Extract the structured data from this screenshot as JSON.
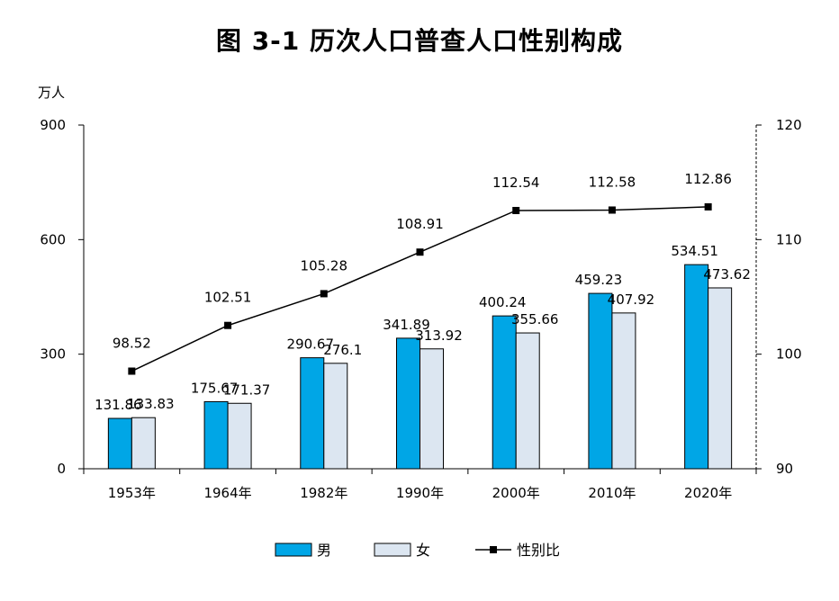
{
  "page": {
    "title": "图 3-1   历次人口普查人口性别构成"
  },
  "chart_data": {
    "type": "bar",
    "title": "图 3-1   历次人口普查人口性别构成",
    "ylabel": "万人",
    "ylim": [
      0,
      900
    ],
    "yticks": [
      0,
      300,
      600,
      900
    ],
    "y2lim": [
      90,
      120
    ],
    "y2ticks": [
      90,
      100,
      110,
      120
    ],
    "categories": [
      "1953年",
      "1964年",
      "1982年",
      "1990年",
      "2000年",
      "2010年",
      "2020年"
    ],
    "series": [
      {
        "name": "男",
        "kind": "bar",
        "axis": "left",
        "color": "#00A6E6",
        "values": [
          131.86,
          175.67,
          290.67,
          341.89,
          400.24,
          459.23,
          534.51
        ]
      },
      {
        "name": "女",
        "kind": "bar",
        "axis": "left",
        "color": "#DCE6F1",
        "values": [
          133.83,
          171.37,
          276.1,
          313.92,
          355.66,
          407.92,
          473.62
        ]
      },
      {
        "name": "性别比",
        "kind": "line",
        "axis": "right",
        "color": "#000000",
        "values": [
          98.52,
          102.51,
          105.28,
          108.91,
          112.54,
          112.58,
          112.86
        ]
      }
    ],
    "legend_position": "bottom-center",
    "grid": false
  }
}
